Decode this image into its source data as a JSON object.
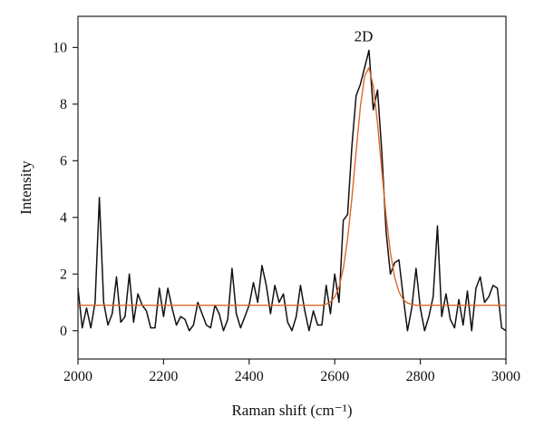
{
  "chart_data": {
    "type": "line",
    "x_label": "Raman shift (cm⁻¹)",
    "y_label": "Intensity",
    "annotation": "2D",
    "xlim": [
      2000,
      3000
    ],
    "xticks": [
      2000,
      2200,
      2400,
      2600,
      2800,
      3000
    ],
    "ylim": [
      -1,
      11.1
    ],
    "yticks": [
      0,
      2,
      4,
      6,
      8,
      10
    ],
    "grid": false,
    "x": [
      2000,
      2010,
      2020,
      2030,
      2040,
      2050,
      2060,
      2070,
      2080,
      2090,
      2100,
      2110,
      2120,
      2130,
      2140,
      2150,
      2160,
      2170,
      2180,
      2190,
      2200,
      2210,
      2220,
      2230,
      2240,
      2250,
      2260,
      2270,
      2280,
      2290,
      2300,
      2310,
      2320,
      2330,
      2340,
      2350,
      2360,
      2370,
      2380,
      2390,
      2400,
      2410,
      2420,
      2430,
      2440,
      2450,
      2460,
      2470,
      2480,
      2490,
      2500,
      2510,
      2520,
      2530,
      2540,
      2550,
      2560,
      2570,
      2580,
      2590,
      2600,
      2610,
      2620,
      2630,
      2640,
      2650,
      2660,
      2670,
      2680,
      2690,
      2700,
      2710,
      2720,
      2730,
      2740,
      2750,
      2760,
      2770,
      2780,
      2790,
      2800,
      2810,
      2820,
      2830,
      2840,
      2850,
      2860,
      2870,
      2880,
      2890,
      2900,
      2910,
      2920,
      2930,
      2940,
      2950,
      2960,
      2970,
      2980,
      2990,
      3000
    ],
    "series": [
      {
        "color": "#111111",
        "values": [
          1.5,
          0.1,
          0.8,
          0.1,
          1.0,
          4.7,
          1.0,
          0.2,
          0.6,
          1.9,
          0.3,
          0.5,
          2.0,
          0.3,
          1.3,
          0.9,
          0.7,
          0.1,
          0.1,
          1.5,
          0.5,
          1.5,
          0.8,
          0.2,
          0.5,
          0.4,
          0.0,
          0.2,
          1.0,
          0.6,
          0.2,
          0.1,
          0.9,
          0.6,
          0.0,
          0.4,
          2.2,
          0.6,
          0.1,
          0.5,
          0.9,
          1.7,
          1.0,
          2.3,
          1.6,
          0.6,
          1.6,
          1.0,
          1.3,
          0.3,
          0.0,
          0.5,
          1.6,
          0.7,
          0.0,
          0.7,
          0.2,
          0.2,
          1.6,
          0.6,
          2.0,
          1.0,
          3.9,
          4.1,
          6.5,
          8.3,
          8.7,
          9.3,
          9.9,
          7.8,
          8.5,
          6.3,
          3.5,
          2.0,
          2.4,
          2.5,
          1.2,
          0.0,
          0.8,
          2.2,
          0.8,
          0.0,
          0.5,
          1.2,
          3.7,
          0.5,
          1.3,
          0.4,
          0.1,
          1.1,
          0.2,
          1.4,
          0.0,
          1.5,
          1.9,
          1.0,
          1.2,
          1.6,
          1.5,
          0.1,
          0.0
        ]
      },
      {
        "color": "#e0662a",
        "values": [
          0.9,
          0.9,
          0.9,
          0.9,
          0.9,
          0.9,
          0.9,
          0.9,
          0.9,
          0.9,
          0.9,
          0.9,
          0.9,
          0.9,
          0.9,
          0.9,
          0.9,
          0.9,
          0.9,
          0.9,
          0.9,
          0.9,
          0.9,
          0.9,
          0.9,
          0.9,
          0.9,
          0.9,
          0.9,
          0.9,
          0.9,
          0.9,
          0.9,
          0.9,
          0.9,
          0.9,
          0.9,
          0.9,
          0.9,
          0.9,
          0.9,
          0.9,
          0.9,
          0.9,
          0.9,
          0.9,
          0.9,
          0.9,
          0.9,
          0.9,
          0.9,
          0.9,
          0.9,
          0.9,
          0.9,
          0.9,
          0.9,
          0.9,
          0.94,
          1.01,
          1.19,
          1.54,
          2.19,
          3.24,
          4.67,
          6.33,
          7.92,
          9.0,
          9.28,
          8.65,
          7.32,
          5.65,
          4.05,
          2.77,
          1.89,
          1.37,
          1.1,
          0.98,
          0.93,
          0.9,
          0.9,
          0.9,
          0.9,
          0.9,
          0.9,
          0.9,
          0.9,
          0.9,
          0.9,
          0.9,
          0.9,
          0.9,
          0.9,
          0.9,
          0.9,
          0.9,
          0.9,
          0.9,
          0.9,
          0.9,
          0.9
        ]
      }
    ]
  }
}
